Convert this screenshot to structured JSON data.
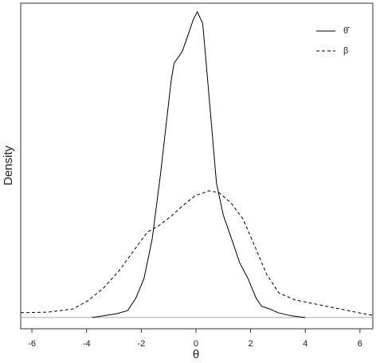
{
  "chart_data": {
    "type": "line",
    "x_label": "θ",
    "y_label": "Density",
    "xlim": [
      -6.41,
      6.47
    ],
    "ylim": [
      -0.021,
      0.586
    ],
    "xticks": [
      -6,
      -4,
      -2,
      0,
      2,
      4,
      6
    ],
    "legend": "top-right",
    "series": [
      {
        "name": "θ̂",
        "color": "#000000",
        "dash": "solid",
        "x": [
          -3.8,
          -3.4,
          -2.9,
          -2.5,
          -2.2,
          -1.9,
          -1.6,
          -1.3,
          -1.1,
          -0.9,
          -0.8,
          -0.5,
          -0.3,
          -0.1,
          0.05,
          0.25,
          0.4,
          0.6,
          0.75,
          1,
          1.3,
          1.6,
          1.9,
          2.2,
          2.4,
          2.7,
          3,
          3.5,
          4
        ],
        "values": [
          0,
          0.003,
          0.007,
          0.013,
          0.036,
          0.073,
          0.147,
          0.266,
          0.355,
          0.444,
          0.474,
          0.496,
          0.525,
          0.555,
          0.57,
          0.548,
          0.459,
          0.34,
          0.251,
          0.191,
          0.147,
          0.102,
          0.073,
          0.036,
          0.021,
          0.016,
          0.009,
          0.003,
          0
        ]
      },
      {
        "name": "β",
        "color": "#000000",
        "dash": "dashed",
        "x": [
          -6.41,
          -5.4,
          -4.5,
          -3.96,
          -3.38,
          -2.8,
          -2.21,
          -1.78,
          -1.34,
          -0.9,
          -0.47,
          -0.03,
          0.47,
          0.84,
          1.28,
          1.72,
          2.16,
          2.59,
          3.03,
          3.61,
          4.19,
          5.07,
          5.94,
          6.47
        ],
        "values": [
          0.009,
          0.01,
          0.016,
          0.031,
          0.055,
          0.088,
          0.129,
          0.159,
          0.172,
          0.189,
          0.209,
          0.227,
          0.236,
          0.233,
          0.214,
          0.184,
          0.132,
          0.08,
          0.046,
          0.033,
          0.027,
          0.018,
          0.009,
          0.004
        ]
      }
    ]
  }
}
